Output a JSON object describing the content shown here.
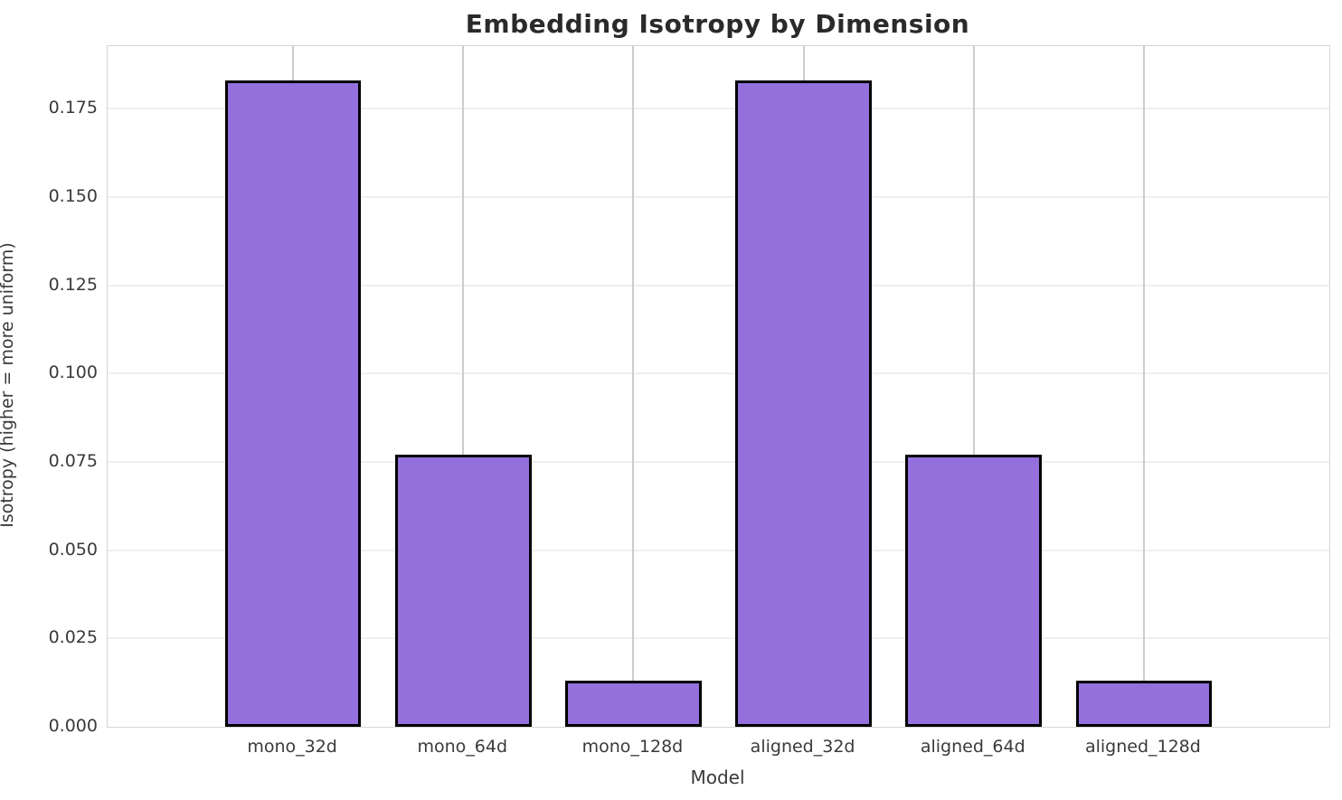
{
  "chart_data": {
    "type": "bar",
    "title": "Embedding Isotropy by Dimension",
    "xlabel": "Model",
    "ylabel": "Isotropy (higher = more uniform)",
    "categories": [
      "mono_32d",
      "mono_64d",
      "mono_128d",
      "aligned_32d",
      "aligned_64d",
      "aligned_128d"
    ],
    "values": [
      0.183,
      0.077,
      0.013,
      0.183,
      0.077,
      0.013
    ],
    "ylim": [
      0,
      0.1927
    ],
    "yticks": [
      0.0,
      0.025,
      0.05,
      0.075,
      0.1,
      0.125,
      0.15,
      0.175
    ],
    "ytick_labels": [
      "0.000",
      "0.025",
      "0.050",
      "0.075",
      "0.100",
      "0.125",
      "0.150",
      "0.175"
    ],
    "grid": "both",
    "legend_position": "none",
    "bar_color": "#9370DB",
    "bar_edge_color": "#000000"
  },
  "colors": {
    "accent_bar_fill": "#9370DB",
    "bar_edge": "#000000",
    "grid_horizontal": "#efefef",
    "grid_vertical": "#cccccc",
    "spine": "#d6d6d6",
    "title_text": "#2a2a2a",
    "tick_text": "#3a3a3a",
    "background": "#ffffff"
  }
}
